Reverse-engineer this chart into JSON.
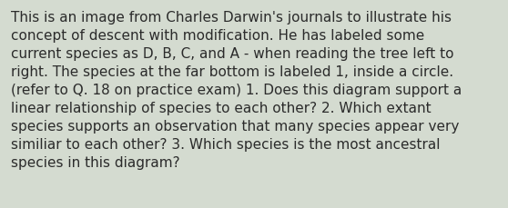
{
  "lines": [
    "This is an image from Charles Darwin's journals to illustrate his",
    "concept of descent with modification. He has labeled some",
    "current species as D, B, C, and A - when reading the tree left to",
    "right. The species at the far bottom is labeled 1, inside a circle.",
    "(refer to Q. 18 on practice exam) 1. Does this diagram support a",
    "linear relationship of species to each other? 2. Which extant",
    "species supports an observation that many species appear very",
    "similiar to each other? 3. Which species is the most ancestral",
    "species in this diagram?"
  ],
  "background_color": "#d4dbd0",
  "text_color": "#2b2b2b",
  "font_size": 11.0,
  "fig_width": 5.58,
  "fig_height": 2.3,
  "dpi": 100
}
